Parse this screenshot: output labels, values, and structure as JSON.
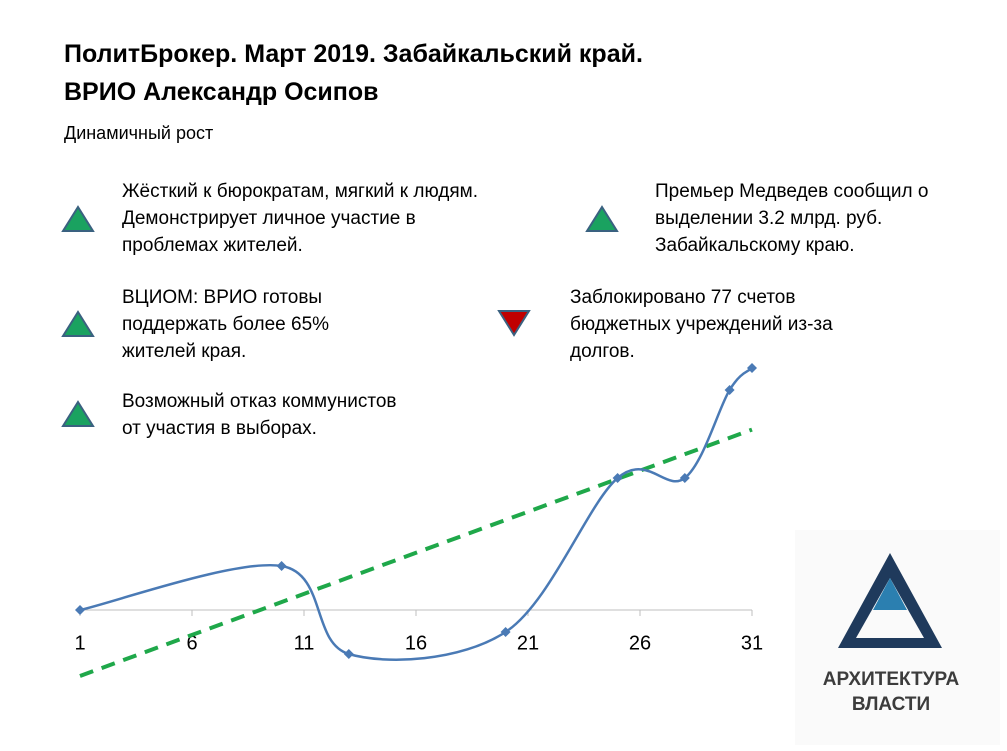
{
  "chart_data": {
    "type": "line",
    "title_lines": [
      "ПолитБрокер. Март 2019. Забайкальский край.",
      "ВРИО Александр Осипов"
    ],
    "subtitle": "Динамичный рост",
    "x": [
      1,
      10,
      13,
      20,
      25,
      28,
      30,
      31
    ],
    "values": [
      0,
      2,
      -2,
      -1,
      6,
      6,
      10,
      11
    ],
    "color": "#4a7ab5",
    "trend": {
      "x": [
        1,
        31
      ],
      "values": [
        -3,
        8.2
      ],
      "color": "#1fa84a"
    },
    "xlim": [
      1,
      31
    ],
    "xticks": [
      1,
      6,
      11,
      16,
      21,
      26,
      31
    ],
    "ylim": [
      -3,
      11
    ],
    "annotations": [
      {
        "lines": [
          "Жёсткий к бюрократам, мягкий к людям.",
          "Демонстрирует личное участие в",
          "проблемах жителей."
        ],
        "direction": "up"
      },
      {
        "lines": [
          "ВЦИОМ: ВРИО готовы",
          "поддержать более 65%",
          "жителей края."
        ],
        "direction": "up"
      },
      {
        "lines": [
          "Возможный отказ коммунистов",
          "от участия в выборах."
        ],
        "direction": "up"
      },
      {
        "lines": [
          "Премьер Медведев сообщил о",
          "выделении 3.2 млрд. руб.",
          "Забайкальскому краю."
        ],
        "direction": "up"
      },
      {
        "lines": [
          "Заблокировано 77 счетов",
          "бюджетных учреждений из-за",
          "долгов."
        ],
        "direction": "down"
      }
    ]
  },
  "logo": {
    "lines": [
      "АРХИТЕКТУРА",
      "ВЛАСТИ"
    ]
  }
}
